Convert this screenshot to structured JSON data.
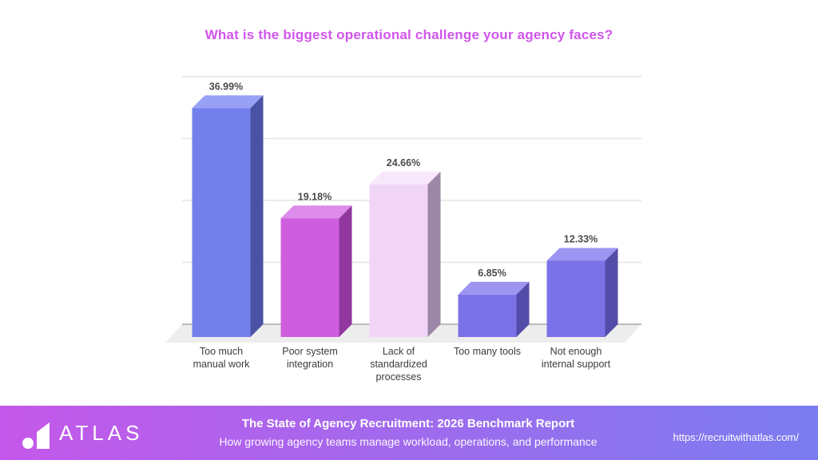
{
  "title": "What is the biggest operational challenge your agency faces?",
  "chart_data": {
    "type": "bar",
    "style": "3d-column",
    "title": "What is the biggest operational challenge your agency faces?",
    "categories": [
      "Too much\nmanual work",
      "Poor system\nintegration",
      "Lack of\nstandardized\nprocesses",
      "Too many tools",
      "Not enough\ninternal support"
    ],
    "values": [
      36.99,
      19.18,
      24.66,
      6.85,
      12.33
    ],
    "value_labels": [
      "36.99%",
      "19.18%",
      "24.66%",
      "6.85%",
      "12.33%"
    ],
    "xlabel": "",
    "ylabel": "",
    "ylim": [
      0,
      40
    ],
    "grid": true,
    "legend": false,
    "bar_colors": [
      {
        "front": "#7380ec",
        "top": "#98a1f4",
        "side": "#4a53a3"
      },
      {
        "front": "#ce5ede",
        "top": "#dd8bea",
        "side": "#90389f"
      },
      {
        "front": "#f1d5f6",
        "top": "#f8e7fb",
        "side": "#9c87a6"
      },
      {
        "front": "#7c72e8",
        "top": "#9e95f2",
        "side": "#544ca8"
      },
      {
        "front": "#7c72e8",
        "top": "#9e95f2",
        "side": "#544ca8"
      }
    ]
  },
  "colors": {
    "title": "#d155ec",
    "category_label": "#3c3c3c",
    "value_label": "#4a4a4a",
    "grid": "#e3e3e3",
    "baseline": "#a8a8a8",
    "floor": "#ededed",
    "background": "#ffffff"
  },
  "footer": {
    "brand": "ATLAS",
    "report_title": "The State of Agency Recruitment: 2026 Benchmark Report",
    "report_subtitle": "How growing agency teams manage workload, operations, and performance",
    "url": "https://recruitwithatlas.com/",
    "gradient_left": "#c558ea",
    "gradient_right": "#7b7cf0"
  }
}
